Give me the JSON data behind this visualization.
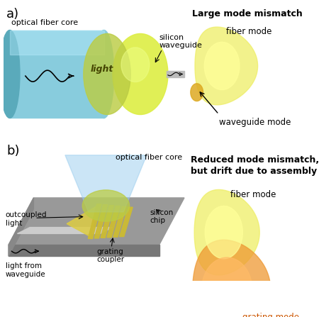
{
  "panel_a_label": "a)",
  "panel_b_label": "b)",
  "fiber_color": "#88CCDD",
  "fiber_color_dark": "#5AAABB",
  "fiber_color_light": "#AADDED",
  "light_overlap_color": "#BBCC44",
  "silicon_wg_color": "#DDEE44",
  "silicon_wg_light": "#EEFF88",
  "chip_top_color": "#888888",
  "chip_side_color": "#666666",
  "chip_left_color": "#777777",
  "grating_color": "#CCAA22",
  "grating_color2": "#DDBB33",
  "outcone_color": "#DDCC44",
  "blue_cone_color": "#AACCEE",
  "light_b_color": "#CCCC44",
  "orange_color": "#EE9944",
  "orange_dark": "#DD7722",
  "title_a": "Large mode mismatch",
  "title_b": "Reduced mode mismatch,\nbut drift due to assembly",
  "label_fiber_core": "optical fiber core",
  "label_light": "light",
  "label_silicon_waveguide": "silicon\nwaveguide",
  "label_fiber_mode_a": "fiber mode",
  "label_waveguide_mode": "waveguide mode",
  "label_optical_fiber_core_b": "optical fiber core",
  "label_outcoupled": "outcoupled\nlight",
  "label_silicon_chip": "silicon\nchip",
  "label_light_from": "light from\nwaveguide",
  "label_grating_coupler": "grating\ncoupler",
  "label_fiber_mode_b": "fiber mode",
  "label_grating_mode": "grating mode",
  "bg_color": "#FFFFFF"
}
